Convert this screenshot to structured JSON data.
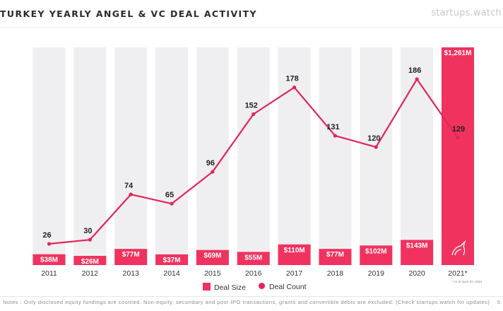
{
  "header": {
    "title": "TURKEY YEARLY ANGEL & VC DEAL ACTIVITY",
    "brand": "startups.watch"
  },
  "colors": {
    "accent": "#f0325f",
    "bar_background": "#efeff1",
    "line": "#e2245a",
    "text": "#222222"
  },
  "chart_data": {
    "type": "bar",
    "categories": [
      "2011",
      "2012",
      "2013",
      "2014",
      "2015",
      "2016",
      "2017",
      "2018",
      "2019",
      "2020",
      "2021*"
    ],
    "series": [
      {
        "name": "Deal Size",
        "type": "bar",
        "values": [
          38,
          26,
          77,
          37,
          69,
          55,
          110,
          77,
          102,
          143,
          1261
        ],
        "labels": [
          "$38M",
          "$26M",
          "$77M",
          "$37M",
          "$69M",
          "$55M",
          "$110M",
          "$77M",
          "$102M",
          "$143M",
          "$1,261M"
        ]
      },
      {
        "name": "Deal Count",
        "type": "line",
        "values": [
          26,
          30,
          74,
          65,
          96,
          152,
          178,
          131,
          120,
          186,
          129
        ],
        "labels": [
          "26",
          "30",
          "74",
          "65",
          "96",
          "152",
          "178",
          "131",
          "120",
          "186",
          "129"
        ]
      }
    ],
    "footnote": "* As of June 30, 2021",
    "legend": "bottom"
  },
  "legend": {
    "deal_size": "Deal Size",
    "deal_count": "Deal Count"
  },
  "footer": {
    "notes": "Notes : Only disclosed equity fundings are counted. Non-equity, secondary and post-IPO transactions, grants and convertible debts are excluded. (Check startups.watch for updates)",
    "page_number": "5"
  }
}
